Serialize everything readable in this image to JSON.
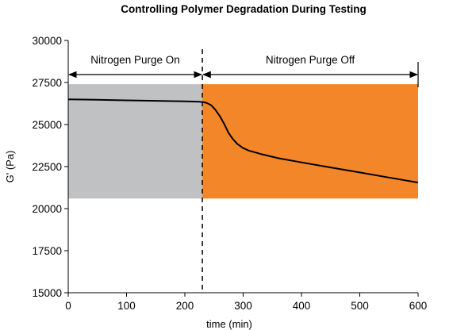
{
  "chart_data": {
    "type": "line",
    "title": "Controlling Polymer Degradation During Testing",
    "xlabel": "time (min)",
    "ylabel": "G' (Pa)",
    "xlim": [
      0,
      600
    ],
    "ylim": [
      15000,
      30000
    ],
    "xticks": [
      0,
      100,
      200,
      300,
      400,
      500,
      600
    ],
    "yticks": [
      15000,
      17500,
      20000,
      22500,
      25000,
      27500,
      30000
    ],
    "grid": false,
    "regions": [
      {
        "label": "Nitrogen Purge On",
        "x_start": 0,
        "x_end": 230,
        "y_start": 20600,
        "y_end": 27400,
        "color": "#c0c1c3"
      },
      {
        "label": "Nitrogen Purge Off",
        "x_start": 230,
        "x_end": 600,
        "y_start": 20600,
        "y_end": 27400,
        "color": "#f4862a"
      }
    ],
    "divider_x": 230,
    "series": [
      {
        "color": "#000000",
        "x": [
          0,
          50,
          100,
          150,
          200,
          225,
          232,
          238,
          245,
          252,
          260,
          268,
          275,
          282,
          290,
          300,
          310,
          330,
          360,
          400,
          450,
          500,
          550,
          600
        ],
        "y": [
          26500,
          26470,
          26440,
          26410,
          26380,
          26360,
          26330,
          26280,
          26150,
          25900,
          25500,
          25000,
          24500,
          24150,
          23850,
          23600,
          23450,
          23250,
          23000,
          22750,
          22450,
          22150,
          21850,
          21550
        ]
      }
    ]
  }
}
